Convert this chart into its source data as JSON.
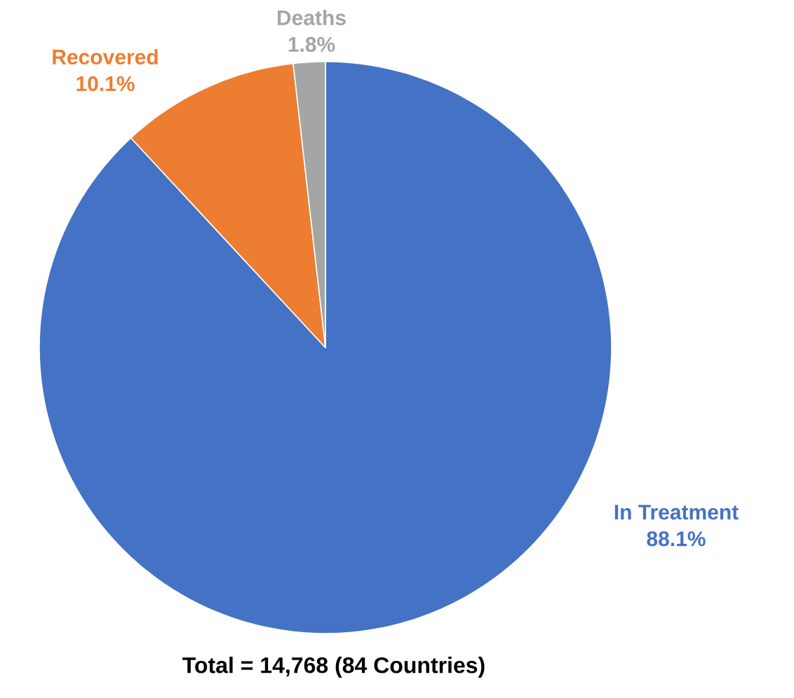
{
  "chart_data": {
    "type": "pie",
    "categories": [
      "In Treatment",
      "Recovered",
      "Deaths"
    ],
    "values": [
      88.1,
      10.1,
      1.8
    ],
    "value_labels": [
      "88.1%",
      "10.1%",
      "1.8%"
    ],
    "colors": [
      "#4472c4",
      "#ed7d31",
      "#a5a5a5"
    ],
    "annotations": [
      "Total = 14,768 (84 Countries)"
    ]
  }
}
